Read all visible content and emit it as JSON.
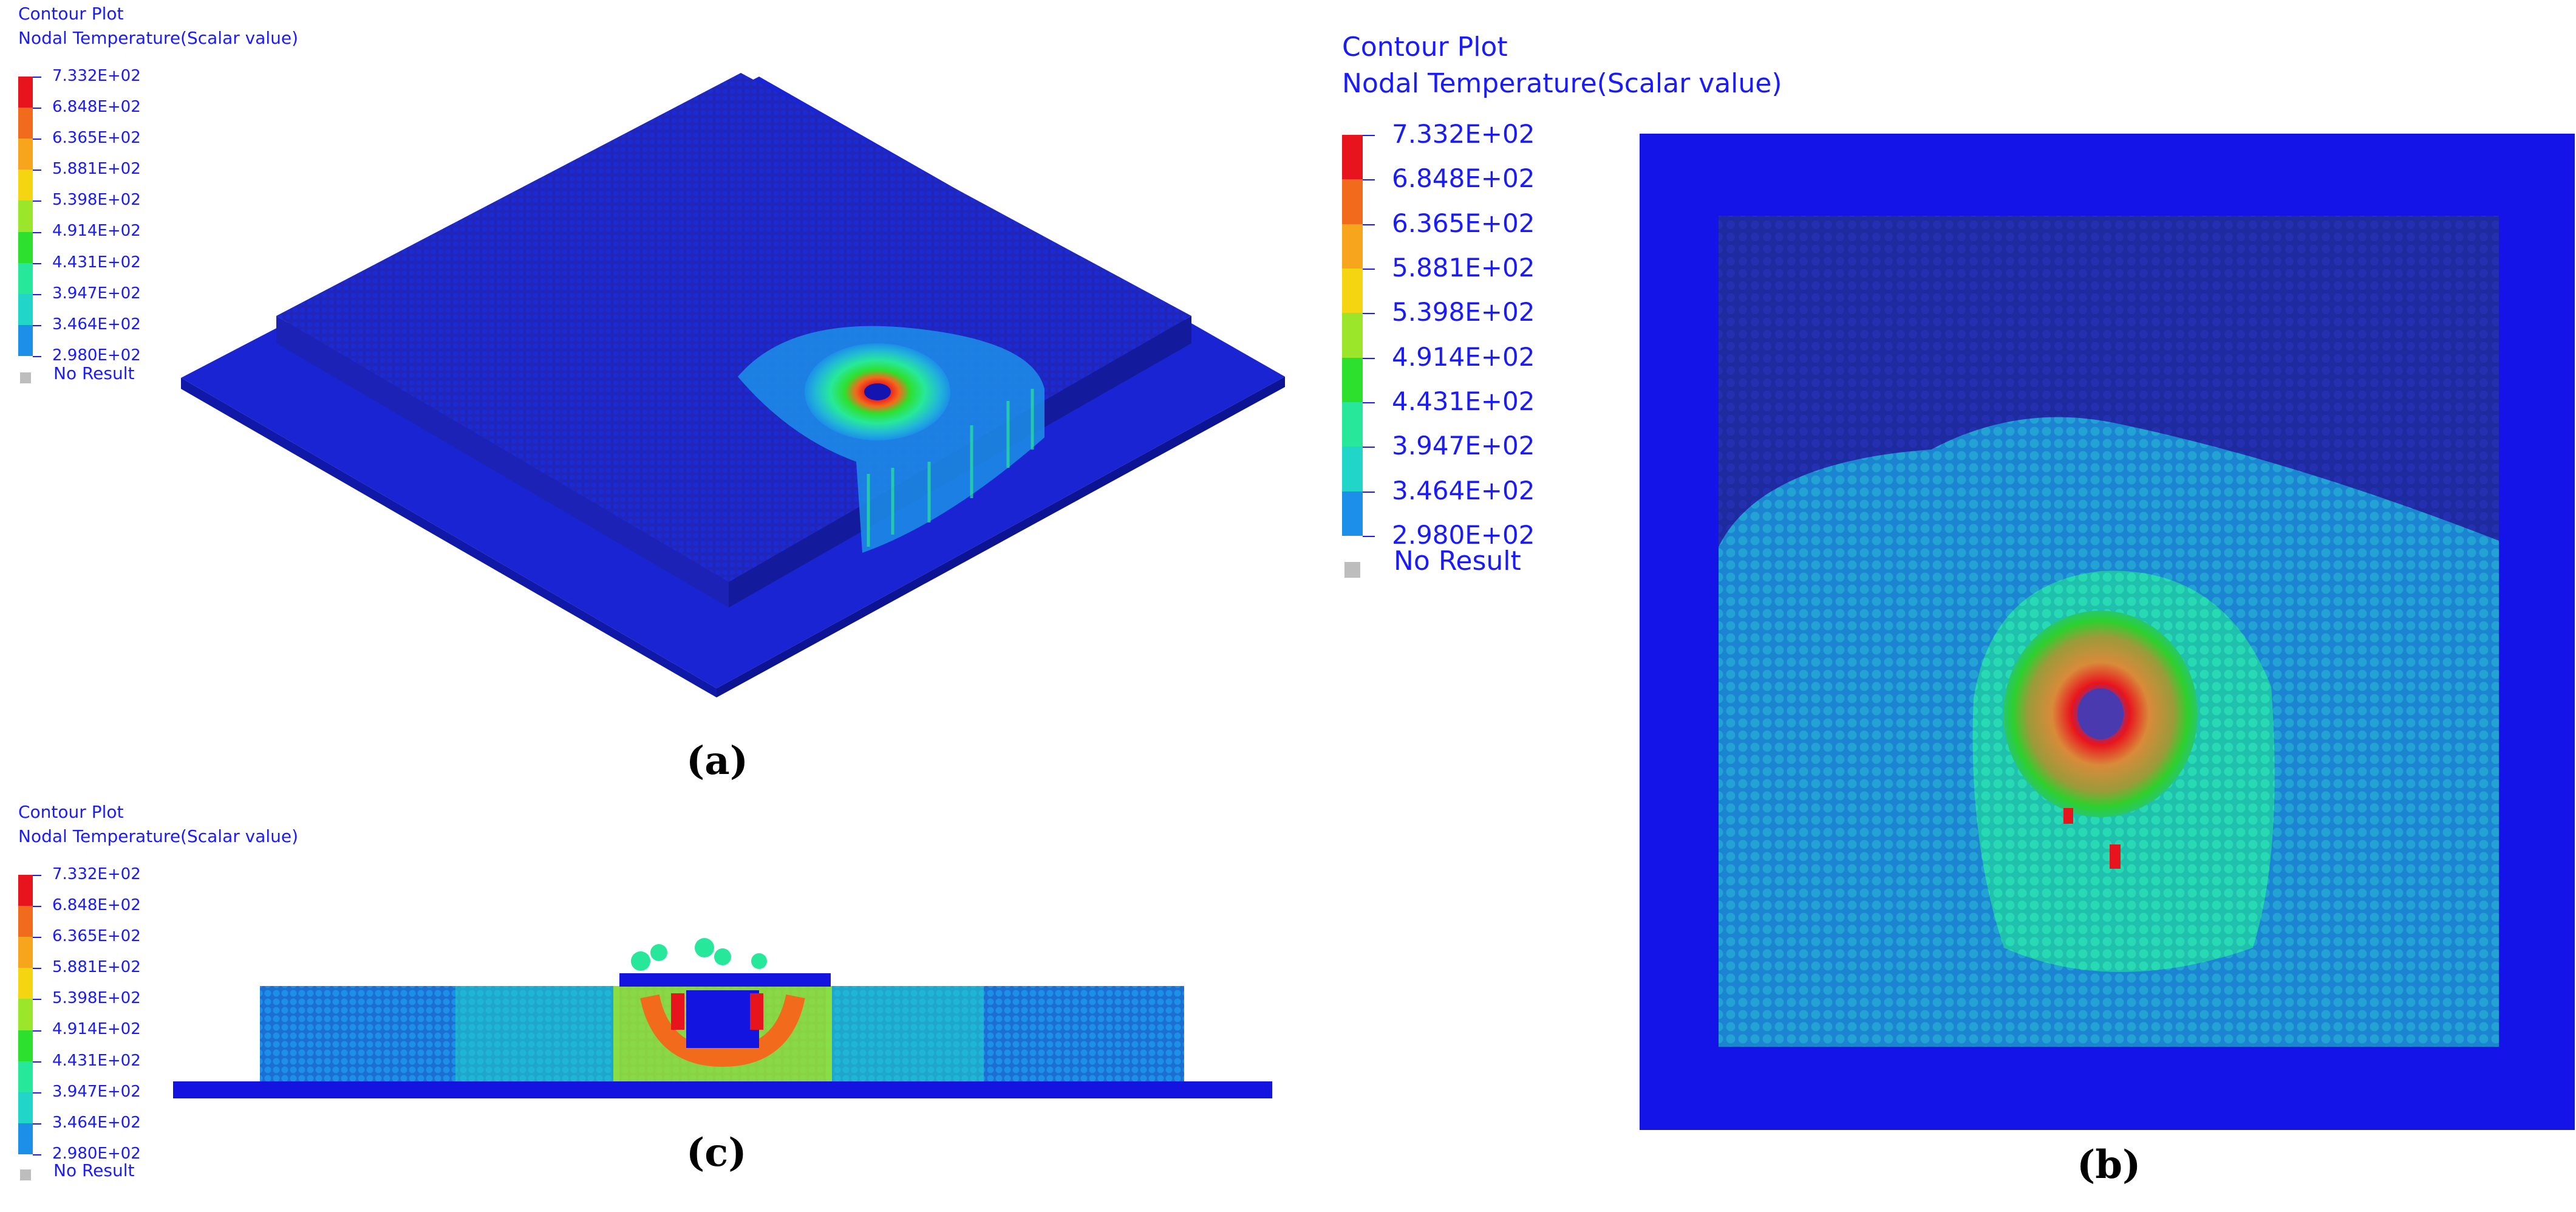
{
  "legend": {
    "title": "Contour Plot",
    "subtitle": "Nodal Temperature(Scalar value)",
    "values": [
      "7.332E+02",
      "6.848E+02",
      "6.365E+02",
      "5.881E+02",
      "5.398E+02",
      "4.914E+02",
      "4.431E+02",
      "3.947E+02",
      "3.464E+02",
      "2.980E+02"
    ],
    "no_result": "No Result",
    "colors": [
      "#e8141d",
      "#f26b1d",
      "#f7a51c",
      "#f5d511",
      "#9be52b",
      "#2ee02e",
      "#27e89a",
      "#21d6c8",
      "#1c8fe8",
      "#1414b0"
    ]
  },
  "panels": {
    "a": {
      "caption": "(a)"
    },
    "b": {
      "caption": "(b)"
    },
    "c": {
      "caption": "(c)"
    }
  }
}
